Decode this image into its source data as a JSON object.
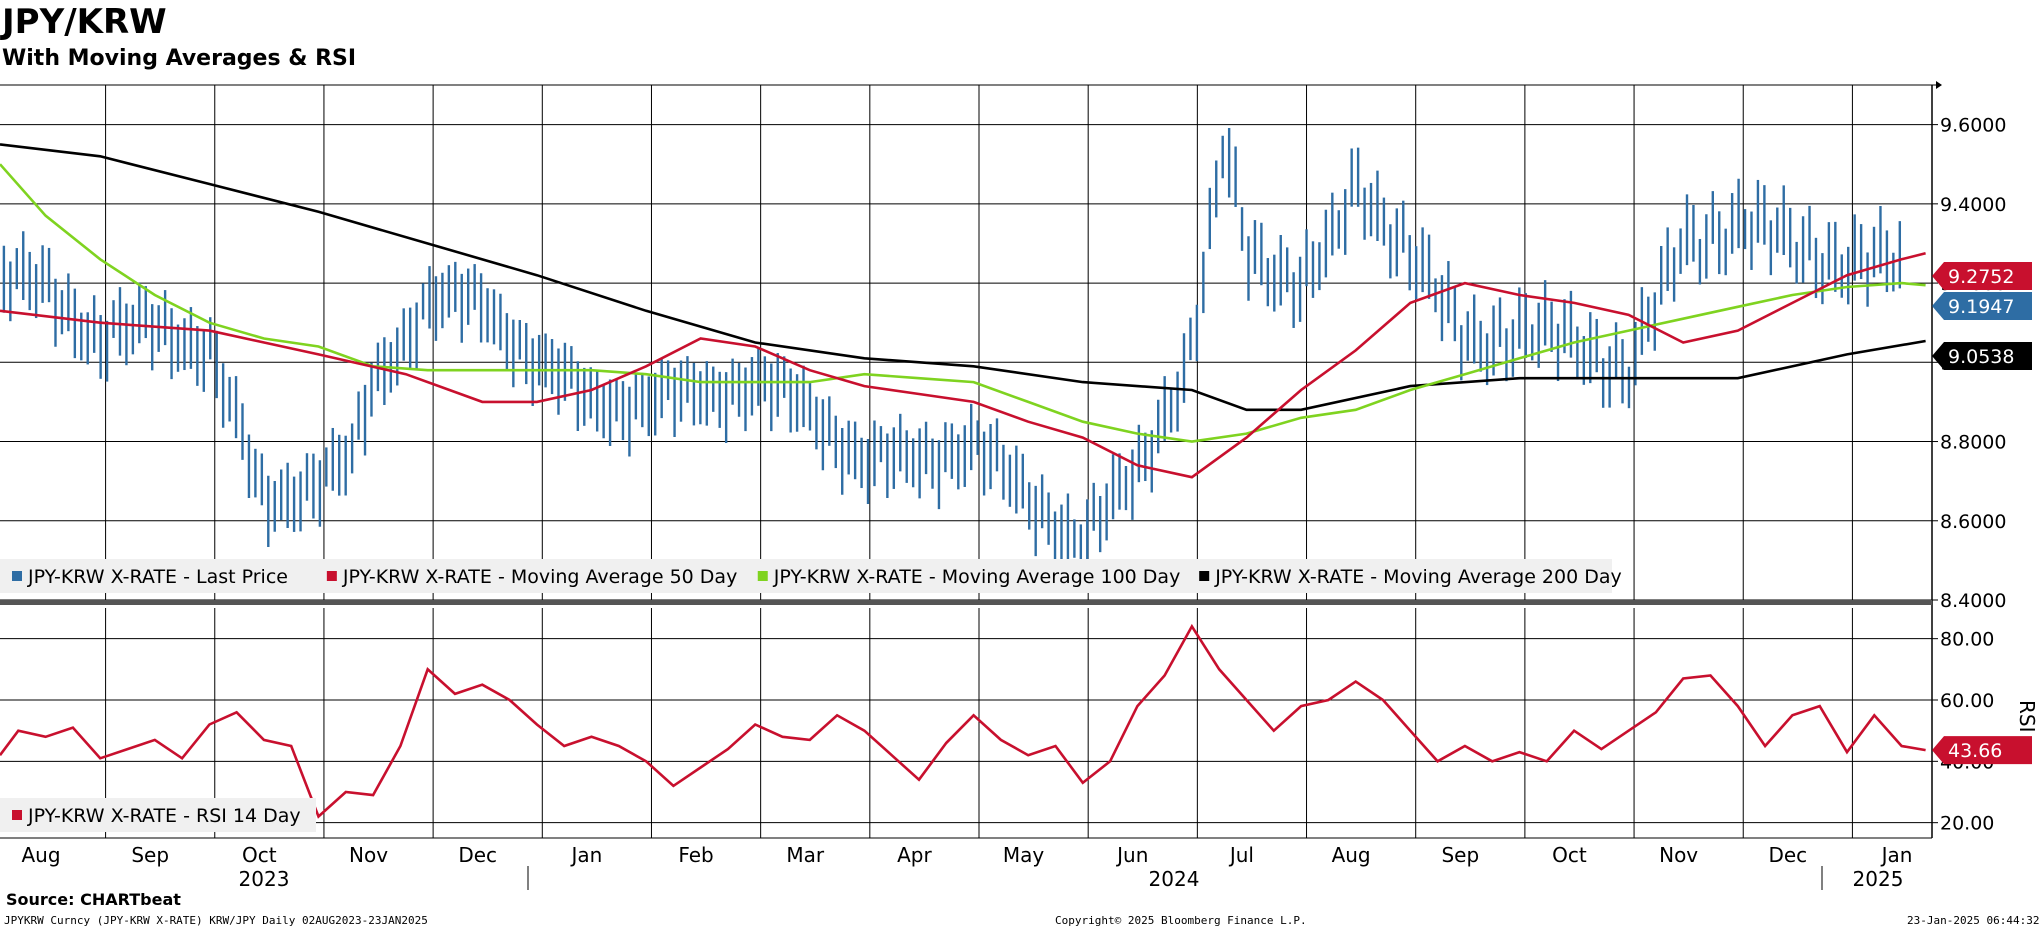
{
  "header": {
    "title": "JPY/KRW",
    "subtitle": "With Moving Averages & RSI"
  },
  "footer": {
    "source": "Source: CHARTbeat",
    "ticker": "JPYKRW Curncy (JPY-KRW X-RATE) KRW/JPY  Daily 02AUG2023-23JAN2025",
    "copyright": "Copyright© 2025 Bloomberg Finance L.P.",
    "timestamp": "23-Jan-2025 06:44:32"
  },
  "colors": {
    "price": "#2e6da4",
    "ma50": "#c8102e",
    "ma100": "#7fd320",
    "ma200": "#000000",
    "rsi": "#c8102e"
  },
  "chart_data": [
    {
      "type": "line",
      "title": "JPY/KRW",
      "ylim": [
        8.4,
        9.7
      ],
      "yticks": [
        8.4,
        8.6,
        8.8,
        9.0,
        9.2,
        9.4,
        9.6
      ],
      "ytick_labels": [
        "8.4000",
        "8.6000",
        "8.8000",
        "9.0000",
        "9.2000",
        "9.4000",
        "9.6000"
      ],
      "x_months": [
        "Aug",
        "Sep",
        "Oct",
        "Nov",
        "Dec",
        "Jan",
        "Feb",
        "Mar",
        "Apr",
        "May",
        "Jun",
        "Jul",
        "Aug",
        "Sep",
        "Oct",
        "Nov",
        "Dec",
        "Jan"
      ],
      "x_years": [
        "2023",
        "2024",
        "2025"
      ],
      "x_range": [
        0,
        17.72
      ],
      "series": [
        {
          "name": "JPY-KRW X-RATE - Last Price",
          "style": "bars",
          "x": [
            0,
            0.5,
            1,
            1.5,
            2,
            2.5,
            3,
            3.3,
            3.5,
            4,
            4.5,
            5,
            5.5,
            6,
            6.5,
            7,
            7.5,
            8,
            8.5,
            9,
            9.5,
            10,
            10.5,
            11,
            11.3,
            11.5,
            12,
            12.3,
            12.5,
            13,
            13.5,
            14,
            14.5,
            15,
            15.5,
            16,
            16.5,
            17,
            17.5,
            17.72
          ],
          "values": [
            9.2,
            9.2,
            9.05,
            9.1,
            9.03,
            8.65,
            8.7,
            8.75,
            8.95,
            9.15,
            9.15,
            9.0,
            8.9,
            8.9,
            8.92,
            8.95,
            8.88,
            8.75,
            8.75,
            8.8,
            8.65,
            8.55,
            8.72,
            9.03,
            9.55,
            9.28,
            9.2,
            9.3,
            9.45,
            9.28,
            9.05,
            9.08,
            9.05,
            8.98,
            9.3,
            9.35,
            9.3,
            9.25,
            9.25,
            9.1947
          ]
        },
        {
          "name": "JPY-KRW X-RATE - Moving Average 50 Day",
          "style": "line",
          "x": [
            0,
            1,
            2,
            3,
            3.8,
            4.5,
            5,
            5.5,
            6,
            6.5,
            7,
            7.5,
            8,
            8.5,
            9,
            9.5,
            10,
            10.5,
            11,
            11.5,
            12,
            12.5,
            13,
            13.5,
            14,
            14.5,
            15,
            15.5,
            16,
            16.5,
            17,
            17.5,
            17.72
          ],
          "values": [
            9.13,
            9.1,
            9.08,
            9.02,
            8.97,
            8.9,
            8.9,
            8.93,
            8.99,
            9.06,
            9.04,
            8.98,
            8.94,
            8.92,
            8.9,
            8.85,
            8.81,
            8.74,
            8.71,
            8.81,
            8.93,
            9.03,
            9.15,
            9.2,
            9.17,
            9.15,
            9.12,
            9.05,
            9.08,
            9.15,
            9.22,
            9.26,
            9.2752
          ]
        },
        {
          "name": "JPY-KRW X-RATE - Moving Average 100 Day",
          "style": "line",
          "x": [
            0,
            0.5,
            1,
            1.5,
            2,
            2.5,
            3,
            3.5,
            4,
            4.5,
            5,
            5.5,
            6,
            6.5,
            7,
            7.5,
            8,
            8.5,
            9,
            9.5,
            10,
            10.5,
            11,
            11.5,
            12,
            12.5,
            13,
            13.5,
            14,
            14.5,
            15,
            15.5,
            16,
            16.5,
            17,
            17.5,
            17.72
          ],
          "values": [
            9.5,
            9.37,
            9.26,
            9.17,
            9.1,
            9.06,
            9.04,
            8.99,
            8.98,
            8.98,
            8.98,
            8.98,
            8.97,
            8.95,
            8.95,
            8.95,
            8.97,
            8.96,
            8.95,
            8.9,
            8.85,
            8.82,
            8.8,
            8.82,
            8.86,
            8.88,
            8.93,
            8.97,
            9.01,
            9.05,
            9.08,
            9.11,
            9.14,
            9.17,
            9.19,
            9.2,
            9.1947
          ]
        },
        {
          "name": "JPY-KRW X-RATE - Moving Average 200 Day",
          "style": "line",
          "x": [
            0,
            1,
            2,
            3,
            4,
            5,
            6,
            7,
            8,
            9,
            10,
            11,
            11.5,
            12,
            13,
            14,
            15,
            16,
            17,
            17.72
          ],
          "values": [
            9.55,
            9.52,
            9.45,
            9.38,
            9.3,
            9.22,
            9.13,
            9.05,
            9.01,
            8.99,
            8.95,
            8.93,
            8.88,
            8.88,
            8.94,
            8.96,
            8.96,
            8.96,
            9.02,
            9.0538
          ]
        }
      ],
      "last_value_labels": [
        "9.2752",
        "9.1947",
        "9.0538"
      ]
    },
    {
      "type": "line",
      "title": "RSI",
      "ylabel": "RSI",
      "ylim": [
        15,
        90
      ],
      "yticks": [
        20,
        40,
        60,
        80
      ],
      "ytick_labels": [
        "20.00",
        "40.00",
        "60.00",
        "80.00"
      ],
      "series": [
        {
          "name": "JPY-KRW X-RATE - RSI 14 Day",
          "x": [
            0,
            0.25,
            0.5,
            0.75,
            1,
            1.25,
            1.5,
            1.75,
            2,
            2.25,
            2.5,
            2.75,
            3,
            3.25,
            3.5,
            3.75,
            4,
            4.25,
            4.5,
            4.75,
            5,
            5.25,
            5.5,
            5.75,
            6,
            6.25,
            6.5,
            6.75,
            7,
            7.25,
            7.5,
            7.75,
            8,
            8.25,
            8.5,
            8.75,
            9,
            9.25,
            9.5,
            9.75,
            10,
            10.25,
            10.5,
            10.75,
            11,
            11.25,
            11.5,
            11.75,
            12,
            12.25,
            12.5,
            12.75,
            13,
            13.25,
            13.5,
            13.75,
            14,
            14.25,
            14.5,
            14.75,
            15,
            15.25,
            15.5,
            15.75,
            16,
            16.25,
            16.5,
            16.75,
            17,
            17.25,
            17.5,
            17.72
          ],
          "values": [
            42,
            50,
            48,
            51,
            41,
            44,
            47,
            41,
            52,
            56,
            47,
            45,
            22,
            30,
            29,
            45,
            70,
            62,
            65,
            60,
            52,
            45,
            48,
            45,
            40,
            32,
            38,
            44,
            52,
            48,
            47,
            55,
            50,
            42,
            34,
            46,
            55,
            47,
            42,
            45,
            33,
            40,
            58,
            68,
            84,
            70,
            60,
            50,
            58,
            60,
            66,
            60,
            50,
            40,
            45,
            40,
            43,
            40,
            50,
            44,
            50,
            56,
            67,
            68,
            58,
            45,
            55,
            58,
            43,
            55,
            45,
            43.66
          ]
        }
      ],
      "last_value_labels": [
        "43.66"
      ]
    }
  ],
  "legends": {
    "main": [
      {
        "label": "JPY-KRW X-RATE - Last Price",
        "color": "#2e6da4"
      },
      {
        "label": "JPY-KRW X-RATE - Moving Average 50 Day",
        "color": "#c8102e"
      },
      {
        "label": "JPY-KRW X-RATE - Moving Average 100 Day",
        "color": "#7fd320"
      },
      {
        "label": "JPY-KRW X-RATE - Moving Average 200 Day",
        "color": "#000000"
      }
    ],
    "rsi": [
      {
        "label": "JPY-KRW X-RATE - RSI 14 Day",
        "color": "#c8102e"
      }
    ]
  }
}
